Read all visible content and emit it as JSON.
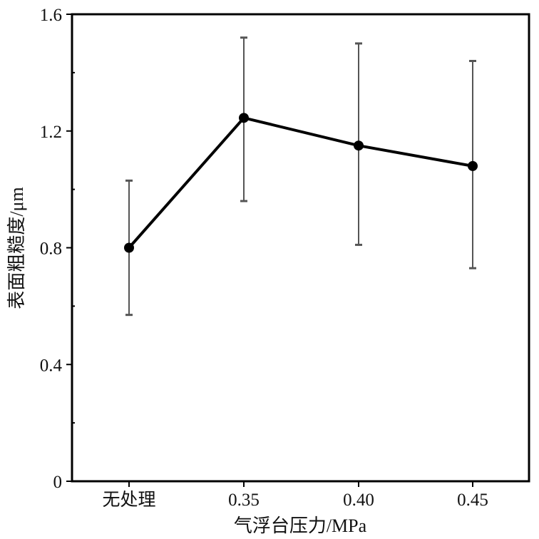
{
  "chart_data": {
    "type": "line",
    "title": "",
    "xlabel": "气浮台压力/MPa",
    "ylabel": "表面粗糙度/μm",
    "categories": [
      "无处理",
      "0.35",
      "0.40",
      "0.45"
    ],
    "series": [
      {
        "values": [
          0.8,
          1.245,
          1.15,
          1.08
        ],
        "error_upper": [
          1.03,
          1.52,
          1.5,
          1.44
        ],
        "error_lower": [
          0.57,
          0.96,
          0.81,
          0.73
        ],
        "color": "#000000",
        "marker": "circle"
      }
    ],
    "ylim": [
      0,
      1.6
    ],
    "yticks": [
      0,
      0.4,
      0.8,
      1.2,
      1.6
    ],
    "ytick_labels": [
      "0",
      "0.4",
      "0.8",
      "1.2",
      "1.6"
    ],
    "grid": false,
    "legend": "none",
    "errorbar_color": "#555555"
  }
}
